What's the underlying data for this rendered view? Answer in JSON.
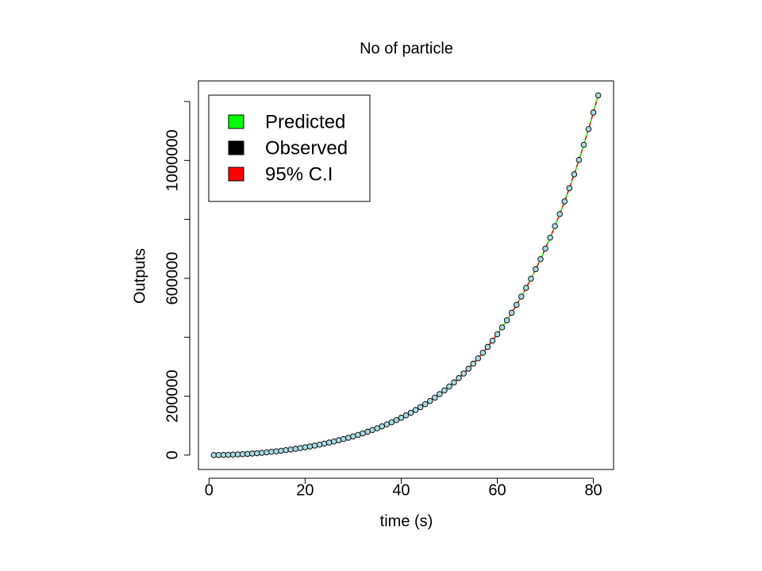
{
  "chart_data": {
    "type": "line",
    "title": "No of particle",
    "x_label": "time (s)",
    "y_label": "Outputs",
    "x": [
      1,
      2,
      3,
      4,
      5,
      6,
      7,
      8,
      9,
      10,
      11,
      12,
      13,
      14,
      15,
      16,
      17,
      18,
      19,
      20,
      21,
      22,
      23,
      24,
      25,
      26,
      27,
      28,
      29,
      30,
      31,
      32,
      33,
      34,
      35,
      36,
      37,
      38,
      39,
      40,
      41,
      42,
      43,
      44,
      45,
      46,
      47,
      48,
      49,
      50,
      51,
      52,
      53,
      54,
      55,
      56,
      57,
      58,
      59,
      60,
      61,
      62,
      63,
      64,
      65,
      66,
      67,
      68,
      69,
      70,
      71,
      72,
      73,
      74,
      75,
      76,
      77,
      78,
      79,
      80,
      81
    ],
    "series": [
      {
        "name": "Predicted",
        "color": "#00ff00",
        "style": "line",
        "values": [
          65,
          258,
          581,
          1033,
          1614,
          2326,
          3167,
          4139,
          5242,
          6478,
          7848,
          9352,
          10994,
          12775,
          14698,
          16765,
          18980,
          21346,
          23869,
          26552,
          29401,
          32420,
          35619,
          39002,
          42577,
          46353,
          50338,
          54541,
          58972,
          63652,
          68580,
          73773,
          79245,
          85011,
          91086,
          97486,
          104228,
          111331,
          118815,
          126699,
          135005,
          143755,
          152974,
          162685,
          172915,
          183692,
          195042,
          206997,
          219587,
          232844,
          246802,
          261497,
          276962,
          293239,
          310365,
          328381,
          347330,
          367255,
          388202,
          410217,
          433350,
          457650,
          483169,
          509962,
          538082,
          567588,
          598539,
          630994,
          665017,
          700671,
          738024,
          777143,
          818098,
          860963,
          905810,
          952716,
          1001759,
          1053019,
          1106579,
          1162524,
          1220939
        ]
      },
      {
        "name": "Observed",
        "color": "#000000",
        "style": "points",
        "marker_fill": "#a8d8e0",
        "values": [
          65,
          258,
          581,
          1033,
          1614,
          2326,
          3167,
          4139,
          5242,
          6478,
          7848,
          9352,
          10994,
          12775,
          14698,
          16765,
          18980,
          21346,
          23869,
          26552,
          29401,
          32420,
          35619,
          39002,
          42577,
          46353,
          50338,
          54541,
          58972,
          63652,
          68580,
          73773,
          79245,
          85011,
          91086,
          97486,
          104228,
          111331,
          118815,
          126699,
          135005,
          143755,
          152974,
          162685,
          172915,
          183692,
          195042,
          206997,
          219587,
          232844,
          246802,
          261497,
          276962,
          293239,
          310365,
          328381,
          347330,
          367255,
          388202,
          410217,
          433350,
          457650,
          483169,
          509962,
          538082,
          567588,
          598539,
          630994,
          665017,
          700671,
          738024,
          777143,
          818098,
          860963,
          905810,
          952716,
          1001759,
          1053019,
          1106579,
          1162524,
          1220939
        ]
      },
      {
        "name": "95% C.I",
        "color": "#ff0000",
        "style": "dashed",
        "values": [
          65,
          258,
          581,
          1033,
          1614,
          2326,
          3167,
          4139,
          5242,
          6478,
          7848,
          9352,
          10994,
          12775,
          14698,
          16765,
          18980,
          21346,
          23869,
          26552,
          29401,
          32420,
          35619,
          39002,
          42577,
          46353,
          50338,
          54541,
          58972,
          63652,
          68580,
          73773,
          79245,
          85011,
          91086,
          97486,
          104228,
          111331,
          118815,
          126699,
          135005,
          143755,
          152974,
          162685,
          172915,
          183692,
          195042,
          206997,
          219587,
          232844,
          246802,
          261497,
          276962,
          293239,
          310365,
          328381,
          347330,
          367255,
          388202,
          410217,
          433350,
          457650,
          483169,
          509962,
          538082,
          567588,
          598539,
          630994,
          665017,
          700671,
          738024,
          777143,
          818098,
          860963,
          905810,
          952716,
          1001759,
          1053019,
          1106579,
          1162524,
          1220939
        ]
      }
    ],
    "xlim": [
      -2.2,
      84.2
    ],
    "xticks": [
      0,
      20,
      40,
      60,
      80
    ],
    "ylim": [
      -48800,
      1270000
    ],
    "yticks": [
      0,
      200000,
      600000,
      1000000
    ],
    "yticks_unlabeled": [
      400000,
      800000,
      1200000
    ],
    "grid": false,
    "legend": "top-left"
  }
}
